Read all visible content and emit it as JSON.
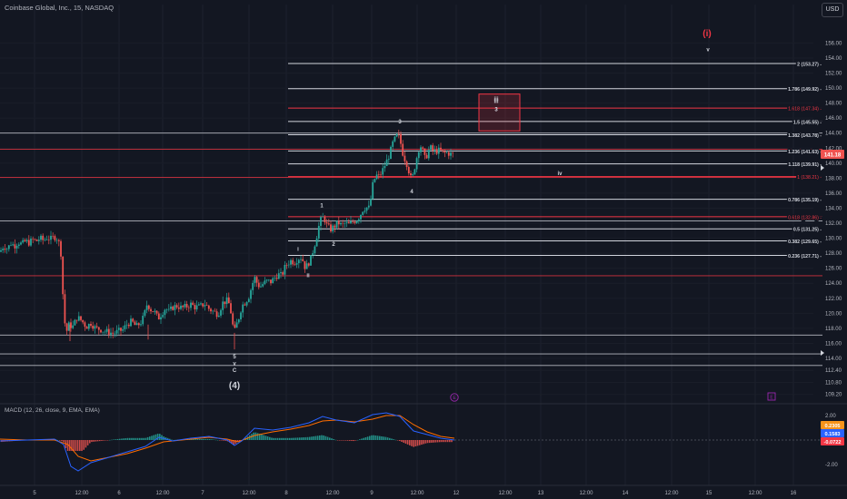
{
  "header": {
    "title": "Coinbase Global, Inc., 15, NASDAQ",
    "currency": "USD"
  },
  "macd": {
    "title": "MACD (12, 26, close, 9, EMA, EMA)",
    "badges": [
      {
        "text": "0.2305",
        "color": "#f7931a"
      },
      {
        "text": "0.1583",
        "color": "#2962ff"
      },
      {
        "text": "-0.0722",
        "color": "#f23645"
      }
    ],
    "axis_ticks": [
      "2.00",
      "-2.00"
    ]
  },
  "colors": {
    "background": "#131722",
    "up": "#26a69a",
    "down": "#ef5350",
    "level_white": "#d1d4dc",
    "level_red": "#f23645",
    "wave_red": "#f23645",
    "macd_line": "#2962ff",
    "signal_line": "#ff6d00",
    "event_purple": "#9c27b0"
  },
  "chart_data": {
    "type": "candlestick",
    "title": "Coinbase Global, Inc., 15, NASDAQ",
    "x_ticks": [
      "5",
      "12:00",
      "6",
      "12:00",
      "7",
      "12:00",
      "8",
      "12:00",
      "9",
      "12:00",
      "12",
      "12:00",
      "13",
      "12:00",
      "14",
      "12:00",
      "15",
      "12:00",
      "16"
    ],
    "y_ticks": [
      "156.00",
      "154.00",
      "152.00",
      "150.00",
      "148.00",
      "146.00",
      "144.00",
      "142.00",
      "140.00",
      "138.00",
      "136.00",
      "134.00",
      "132.00",
      "130.00",
      "128.00",
      "126.00",
      "124.00",
      "122.00",
      "120.00",
      "118.00",
      "116.00",
      "114.00",
      "112.40",
      "110.80",
      "109.20"
    ],
    "ylim": [
      108.2,
      157.5
    ],
    "last_price": "141.18",
    "price_path": [
      [
        0,
        128.2
      ],
      [
        4,
        129.0
      ],
      [
        8,
        128.6
      ],
      [
        12,
        129.3
      ],
      [
        16,
        129.0
      ],
      [
        20,
        129.5
      ],
      [
        24,
        129.2
      ],
      [
        28,
        129.6
      ],
      [
        32,
        129.4
      ],
      [
        36,
        129.8
      ],
      [
        40,
        129.6
      ],
      [
        44,
        130.0
      ],
      [
        48,
        129.7
      ],
      [
        52,
        130.1
      ],
      [
        56,
        129.9
      ],
      [
        60,
        130.2
      ],
      [
        64,
        129.9
      ],
      [
        67,
        128.0
      ],
      [
        69,
        123.0
      ],
      [
        71,
        119.0
      ],
      [
        73,
        117.5
      ],
      [
        76,
        118.5
      ],
      [
        80,
        118.2
      ],
      [
        85,
        119.5
      ],
      [
        90,
        119.0
      ],
      [
        95,
        118.2
      ],
      [
        100,
        118.7
      ],
      [
        105,
        118.0
      ],
      [
        110,
        117.9
      ],
      [
        115,
        117.6
      ],
      [
        120,
        117.5
      ],
      [
        125,
        117.3
      ],
      [
        130,
        117.6
      ],
      [
        135,
        117.8
      ],
      [
        140,
        118.6
      ],
      [
        145,
        118.9
      ],
      [
        150,
        118.2
      ],
      [
        155,
        118.8
      ],
      [
        158,
        119.5
      ],
      [
        162,
        121.3
      ],
      [
        166,
        120.5
      ],
      [
        170,
        120.2
      ],
      [
        174,
        119.3
      ],
      [
        178,
        120.0
      ],
      [
        182,
        120.7
      ],
      [
        186,
        120.2
      ],
      [
        190,
        120.8
      ],
      [
        195,
        121.0
      ],
      [
        200,
        120.7
      ],
      [
        205,
        120.9
      ],
      [
        210,
        121.2
      ],
      [
        215,
        120.8
      ],
      [
        220,
        120.9
      ],
      [
        225,
        121.3
      ],
      [
        230,
        120.6
      ],
      [
        235,
        120.2
      ],
      [
        240,
        119.9
      ],
      [
        245,
        121.4
      ],
      [
        250,
        121.7
      ],
      [
        253,
        121.0
      ],
      [
        256,
        118.5
      ],
      [
        258,
        117.5
      ],
      [
        260,
        118.4
      ],
      [
        263,
        119.5
      ],
      [
        266,
        121.0
      ],
      [
        270,
        121.5
      ],
      [
        274,
        122.3
      ],
      [
        277,
        123.6
      ],
      [
        280,
        124.8
      ],
      [
        283,
        124.0
      ],
      [
        286,
        123.5
      ],
      [
        290,
        124.0
      ],
      [
        294,
        124.3
      ],
      [
        298,
        124.2
      ],
      [
        302,
        124.7
      ],
      [
        306,
        125.2
      ],
      [
        310,
        125.0
      ],
      [
        313,
        126.0
      ],
      [
        316,
        126.6
      ],
      [
        320,
        127.0
      ],
      [
        324,
        126.8
      ],
      [
        328,
        127.3
      ],
      [
        332,
        127.5
      ],
      [
        336,
        126.0
      ],
      [
        339,
        126.6
      ],
      [
        342,
        127.3
      ],
      [
        345,
        128.6
      ],
      [
        348,
        130.0
      ],
      [
        351,
        131.7
      ],
      [
        354,
        132.8
      ],
      [
        357,
        132.6
      ],
      [
        360,
        131.6
      ],
      [
        364,
        131.2
      ],
      [
        368,
        131.6
      ],
      [
        372,
        132.1
      ],
      [
        376,
        131.7
      ],
      [
        380,
        132.0
      ],
      [
        384,
        131.8
      ],
      [
        388,
        132.2
      ],
      [
        392,
        132.4
      ],
      [
        396,
        133.0
      ],
      [
        400,
        134.0
      ],
      [
        404,
        134.1
      ],
      [
        407,
        134.0
      ],
      [
        409,
        136.5
      ],
      [
        411,
        137.5
      ],
      [
        414,
        138.4
      ],
      [
        417,
        138.2
      ],
      [
        420,
        138.8
      ],
      [
        423,
        139.6
      ],
      [
        426,
        140.4
      ],
      [
        429,
        141.3
      ],
      [
        432,
        142.6
      ],
      [
        435,
        143.3
      ],
      [
        438,
        143.9
      ],
      [
        441,
        142.6
      ],
      [
        444,
        140.9
      ],
      [
        447,
        140.2
      ],
      [
        450,
        138.9
      ],
      [
        453,
        137.6
      ],
      [
        456,
        139.3
      ],
      [
        459,
        141.0
      ],
      [
        462,
        142.5
      ],
      [
        465,
        141.7
      ],
      [
        468,
        140.4
      ],
      [
        471,
        141.6
      ],
      [
        474,
        142.0
      ],
      [
        477,
        141.5
      ],
      [
        480,
        141.6
      ],
      [
        484,
        141.7
      ],
      [
        488,
        141.3
      ],
      [
        492,
        141.4
      ],
      [
        496,
        141.2
      ],
      [
        500,
        141.18
      ]
    ],
    "levels": [
      {
        "label": "2 (153.27)",
        "price": 153.27,
        "color": "white"
      },
      {
        "label": "1.786 (149.92)",
        "price": 149.92,
        "color": "white"
      },
      {
        "label": "1.618 (147.34)",
        "price": 147.34,
        "color": "red"
      },
      {
        "label": "1.5 (145.55)",
        "price": 145.55,
        "color": "white"
      },
      {
        "label": "1.382 (143.78)",
        "price": 143.78,
        "color": "white"
      },
      {
        "label": "1.236 (141.63)",
        "price": 141.63,
        "color": "white"
      },
      {
        "label": "1.118 (139.91)",
        "price": 139.91,
        "color": "white"
      },
      {
        "label": "1 (138.21)",
        "price": 138.21,
        "color": "red"
      },
      {
        "label": "0.786 (135.19)",
        "price": 135.19,
        "color": "white"
      },
      {
        "label": "0.618 (132.86)",
        "price": 132.86,
        "color": "red"
      },
      {
        "label": "0.5 (131.25)",
        "price": 131.25,
        "color": "white"
      },
      {
        "label": "0.382 (129.65)",
        "price": 129.65,
        "color": "white"
      },
      {
        "label": "0.236 (127.71)",
        "price": 127.71,
        "color": "white"
      }
    ],
    "extra_lines": [
      {
        "price": 144.0,
        "color": "white"
      },
      {
        "price": 141.85,
        "color": "red"
      },
      {
        "price": 138.1,
        "color": "red"
      },
      {
        "price": 132.3,
        "color": "white"
      },
      {
        "price": 125.0,
        "color": "red"
      },
      {
        "price": 117.1,
        "color": "white"
      },
      {
        "price": 114.6,
        "color": "white"
      },
      {
        "price": 113.05,
        "color": "white"
      }
    ],
    "target_box": {
      "label_top": "iii",
      "label_bottom": "3",
      "price_top": 149.2,
      "price_bottom": 144.3
    },
    "wave_labels": [
      {
        "text": "(i)",
        "x": 778,
        "price": 156.9,
        "color": "red",
        "size": "large"
      },
      {
        "text": "v",
        "x": 779,
        "price": 154.9,
        "color": "white",
        "size": "small"
      },
      {
        "text": "iii",
        "x": 546,
        "price": 148.3,
        "color": "white",
        "size": "small"
      },
      {
        "text": "3",
        "x": 546,
        "price": 146.9,
        "color": "white",
        "size": "small"
      },
      {
        "text": "3",
        "x": 440,
        "price": 145.3,
        "color": "white",
        "size": "small"
      },
      {
        "text": "iv",
        "x": 616,
        "price": 138.4,
        "color": "white",
        "size": "small"
      },
      {
        "text": "4",
        "x": 453,
        "price": 136.0,
        "color": "white",
        "size": "small"
      },
      {
        "text": "1",
        "x": 354,
        "price": 134.1,
        "color": "white",
        "size": "small"
      },
      {
        "text": "2",
        "x": 367,
        "price": 129.0,
        "color": "white",
        "size": "small"
      },
      {
        "text": "i",
        "x": 328,
        "price": 128.3,
        "color": "white",
        "size": "small"
      },
      {
        "text": "ii",
        "x": 339,
        "price": 124.8,
        "color": "white",
        "size": "small"
      },
      {
        "text": "5",
        "x": 258,
        "price": 114.0,
        "color": "white",
        "size": "small"
      },
      {
        "text": "v",
        "x": 258,
        "price": 113.1,
        "color": "white",
        "size": "small"
      },
      {
        "text": "C",
        "x": 258,
        "price": 112.2,
        "color": "white",
        "size": "small"
      },
      {
        "text": "(4)",
        "x": 258,
        "price": 110.0,
        "color": "white",
        "size": "large"
      }
    ]
  }
}
